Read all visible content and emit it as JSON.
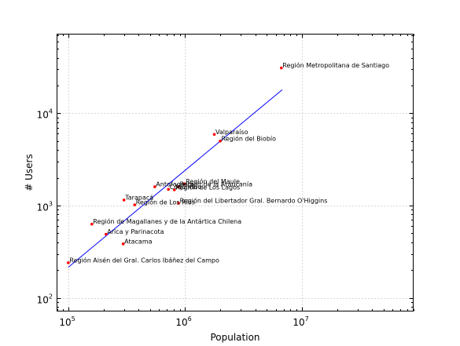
{
  "chart_data": {
    "type": "scatter",
    "title": "",
    "xlabel": "Population",
    "ylabel": "# Users",
    "xscale": "log",
    "yscale": "log",
    "xlim": [
      80000,
      90000000
    ],
    "ylim": [
      72,
      72000
    ],
    "xticks": [
      {
        "value": 100000,
        "base": "10",
        "exp": "5"
      },
      {
        "value": 1000000,
        "base": "10",
        "exp": "6"
      },
      {
        "value": 10000000,
        "base": "10",
        "exp": "7"
      }
    ],
    "yticks": [
      {
        "value": 100,
        "base": "10",
        "exp": "2"
      },
      {
        "value": 1000,
        "base": "10",
        "exp": "3"
      },
      {
        "value": 10000,
        "base": "10",
        "exp": "4"
      }
    ],
    "grid": true,
    "point_color": "#ff0000",
    "line_color": "#0000ff",
    "points": [
      {
        "label": "Región Metropolitana de Santiago",
        "x": 6680000,
        "y": 31000
      },
      {
        "label": "Valparaíso",
        "x": 1780000,
        "y": 5900
      },
      {
        "label": "Región del Biobío",
        "x": 2000000,
        "y": 5000
      },
      {
        "label": "Región del Maule",
        "x": 990000,
        "y": 1720
      },
      {
        "label": "Región de la Araucanía",
        "x": 880000,
        "y": 1600
      },
      {
        "label": "Antofagasta",
        "x": 550000,
        "y": 1600
      },
      {
        "label": "Coquimbo",
        "x": 720000,
        "y": 1500
      },
      {
        "label": "Región de Los Lagos",
        "x": 810000,
        "y": 1480
      },
      {
        "label": "Tarapacá",
        "x": 300000,
        "y": 1150
      },
      {
        "label": "Región de Los Ríos",
        "x": 370000,
        "y": 1020
      },
      {
        "label": "Región del Libertador Gral. Bernardo O'Higgins",
        "x": 880000,
        "y": 1060
      },
      {
        "label": "Región de Magallanes y de la Antártica Chilena",
        "x": 159000,
        "y": 630
      },
      {
        "label": "Arica y Parinacota",
        "x": 210000,
        "y": 490
      },
      {
        "label": "Atacama",
        "x": 295000,
        "y": 385
      },
      {
        "label": "Región Aisén del Gral. Carlos Ibáñez del Campo",
        "x": 100000,
        "y": 240
      }
    ],
    "fit_line": [
      {
        "x": 100000,
        "y": 215
      },
      {
        "x": 6800000,
        "y": 18000
      }
    ]
  }
}
